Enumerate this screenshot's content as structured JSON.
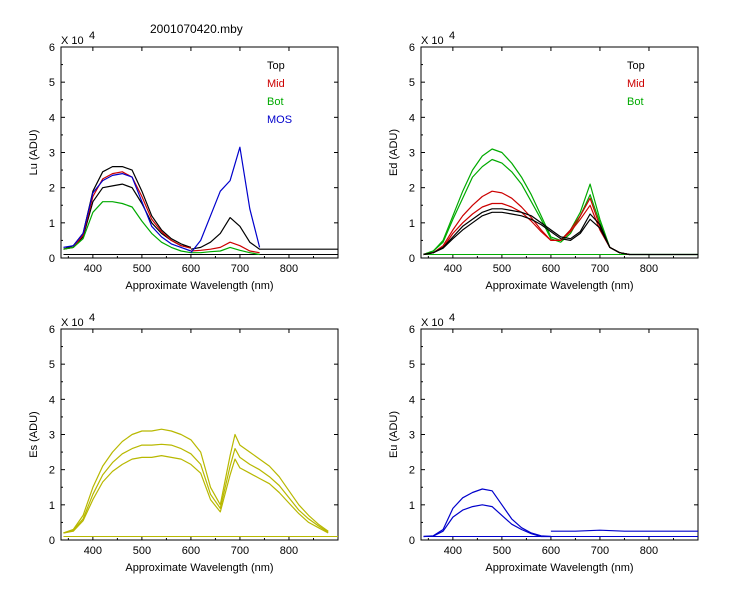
{
  "figure_title": "2001070420.mby",
  "chart_data": [
    {
      "type": "line",
      "ylabel": "Lu (ADU)",
      "xlabel": "Approximate Wavelength (nm)",
      "exponent_label": "X 10^4",
      "xlim": [
        335,
        900
      ],
      "ylim": [
        0,
        6
      ],
      "xticks": [
        400,
        500,
        600,
        700,
        800
      ],
      "yticks": [
        0,
        1,
        2,
        3,
        4,
        5,
        6
      ],
      "legend": [
        {
          "name": "Top",
          "color": "#000000"
        },
        {
          "name": "Mid",
          "color": "#cc0000"
        },
        {
          "name": "Bot",
          "color": "#00aa00"
        },
        {
          "name": "MOS",
          "color": "#0000cc"
        }
      ],
      "series": [
        {
          "name": "Top",
          "color": "#000000",
          "x": [
            340,
            360,
            380,
            400,
            420,
            440,
            460,
            480,
            500,
            520,
            540,
            560,
            580,
            600
          ],
          "y": [
            0.25,
            0.35,
            0.7,
            1.9,
            2.45,
            2.6,
            2.6,
            2.5,
            1.9,
            1.2,
            0.8,
            0.55,
            0.4,
            0.3
          ]
        },
        {
          "name": "Top",
          "color": "#000000",
          "x": [
            340,
            360,
            380,
            400,
            420,
            440,
            460,
            480,
            500,
            520,
            540,
            560,
            580,
            600
          ],
          "y": [
            0.25,
            0.3,
            0.6,
            1.6,
            2.0,
            2.05,
            2.1,
            2.0,
            1.55,
            1.0,
            0.7,
            0.5,
            0.35,
            0.3
          ]
        },
        {
          "name": "Top",
          "color": "#000000",
          "x": [
            600,
            620,
            640,
            660,
            680,
            700,
            720,
            740,
            900
          ],
          "y": [
            0.25,
            0.3,
            0.45,
            0.7,
            1.15,
            0.9,
            0.45,
            0.25,
            0.25
          ]
        },
        {
          "name": "Mid",
          "color": "#cc0000",
          "x": [
            340,
            360,
            380,
            400,
            420,
            440,
            460,
            480,
            500,
            520,
            540,
            560,
            580,
            600
          ],
          "y": [
            0.25,
            0.3,
            0.65,
            1.75,
            2.25,
            2.4,
            2.45,
            2.3,
            1.75,
            1.1,
            0.75,
            0.5,
            0.35,
            0.28
          ]
        },
        {
          "name": "Mid",
          "color": "#cc0000",
          "x": [
            600,
            620,
            640,
            660,
            680,
            700,
            720,
            740
          ],
          "y": [
            0.2,
            0.22,
            0.25,
            0.3,
            0.45,
            0.35,
            0.2,
            0.15
          ]
        },
        {
          "name": "Bot",
          "color": "#00aa00",
          "x": [
            340,
            360,
            380,
            400,
            420,
            440,
            460,
            480,
            500,
            520,
            540,
            560,
            580,
            600
          ],
          "y": [
            0.25,
            0.3,
            0.55,
            1.3,
            1.6,
            1.6,
            1.55,
            1.45,
            1.05,
            0.7,
            0.45,
            0.3,
            0.2,
            0.15
          ]
        },
        {
          "name": "Bot",
          "color": "#00aa00",
          "x": [
            600,
            620,
            640,
            660,
            680,
            700,
            720,
            740
          ],
          "y": [
            0.15,
            0.15,
            0.18,
            0.2,
            0.3,
            0.22,
            0.15,
            0.1
          ]
        },
        {
          "name": "MOS",
          "color": "#0000cc",
          "x": [
            340,
            360,
            380,
            400,
            420,
            440,
            460,
            480,
            500,
            520,
            540,
            560,
            580,
            600
          ],
          "y": [
            0.3,
            0.35,
            0.7,
            1.85,
            2.2,
            2.35,
            2.4,
            2.3,
            1.6,
            0.9,
            0.6,
            0.4,
            0.3,
            0.2
          ]
        },
        {
          "name": "MOS",
          "color": "#0000cc",
          "x": [
            600,
            620,
            640,
            660,
            680,
            700,
            720,
            740
          ],
          "y": [
            0.15,
            0.5,
            1.2,
            1.9,
            2.2,
            3.15,
            1.4,
            0.3
          ]
        }
      ]
    },
    {
      "type": "line",
      "ylabel": "Ed (ADU)",
      "xlabel": "Approximate Wavelength (nm)",
      "exponent_label": "X 10^4",
      "xlim": [
        335,
        900
      ],
      "ylim": [
        0,
        6
      ],
      "xticks": [
        400,
        500,
        600,
        700,
        800
      ],
      "yticks": [
        0,
        1,
        2,
        3,
        4,
        5,
        6
      ],
      "legend": [
        {
          "name": "Top",
          "color": "#000000"
        },
        {
          "name": "Mid",
          "color": "#cc0000"
        },
        {
          "name": "Bot",
          "color": "#00aa00"
        }
      ],
      "series": [
        {
          "name": "Bot",
          "color": "#00aa00",
          "x": [
            340,
            360,
            380,
            400,
            420,
            440,
            460,
            480,
            500,
            520,
            540,
            560,
            580,
            600,
            620,
            640,
            660,
            680,
            700,
            720,
            740,
            760,
            800,
            900
          ],
          "y": [
            0.1,
            0.2,
            0.5,
            1.2,
            1.9,
            2.5,
            2.9,
            3.1,
            3.0,
            2.7,
            2.3,
            1.8,
            1.2,
            0.6,
            0.5,
            0.8,
            1.3,
            2.1,
            1.1,
            0.3,
            0.15,
            0.1,
            0.1,
            0.1
          ]
        },
        {
          "name": "Bot",
          "color": "#00aa00",
          "x": [
            340,
            360,
            380,
            400,
            420,
            440,
            460,
            480,
            500,
            520,
            540,
            560,
            580,
            600,
            620,
            640,
            660,
            680,
            700,
            720,
            740,
            760
          ],
          "y": [
            0.1,
            0.2,
            0.45,
            1.1,
            1.7,
            2.3,
            2.6,
            2.8,
            2.7,
            2.45,
            2.1,
            1.6,
            1.1,
            0.55,
            0.45,
            0.7,
            1.2,
            1.8,
            1.0,
            0.3,
            0.15,
            0.1
          ]
        },
        {
          "name": "Mid",
          "color": "#cc0000",
          "x": [
            340,
            360,
            380,
            400,
            420,
            440,
            460,
            480,
            500,
            520,
            540,
            560,
            580,
            600,
            620,
            640,
            660,
            680,
            700,
            720,
            740,
            760
          ],
          "y": [
            0.1,
            0.15,
            0.35,
            0.8,
            1.2,
            1.5,
            1.75,
            1.9,
            1.85,
            1.7,
            1.45,
            1.15,
            0.8,
            0.5,
            0.5,
            0.8,
            1.2,
            1.7,
            0.9,
            0.3,
            0.15,
            0.1
          ]
        },
        {
          "name": "Mid",
          "color": "#cc0000",
          "x": [
            340,
            360,
            380,
            400,
            420,
            440,
            460,
            480,
            500,
            520,
            540,
            560,
            580,
            600,
            620,
            640,
            660,
            680,
            700,
            720,
            740,
            760
          ],
          "y": [
            0.1,
            0.15,
            0.3,
            0.7,
            1.0,
            1.25,
            1.45,
            1.55,
            1.55,
            1.45,
            1.3,
            1.05,
            0.75,
            0.5,
            0.5,
            0.75,
            1.1,
            1.5,
            0.8,
            0.3,
            0.15,
            0.1
          ]
        },
        {
          "name": "Top",
          "color": "#000000",
          "x": [
            340,
            360,
            380,
            400,
            420,
            440,
            460,
            480,
            500,
            520,
            540,
            560,
            580,
            600,
            620,
            640,
            660,
            680,
            700,
            720,
            740,
            760,
            800,
            900
          ],
          "y": [
            0.1,
            0.15,
            0.3,
            0.6,
            0.9,
            1.1,
            1.3,
            1.4,
            1.4,
            1.35,
            1.3,
            1.2,
            1.0,
            0.8,
            0.6,
            0.55,
            0.75,
            1.25,
            0.95,
            0.3,
            0.15,
            0.1,
            0.1,
            0.1
          ]
        },
        {
          "name": "Top",
          "color": "#000000",
          "x": [
            340,
            360,
            380,
            400,
            420,
            440,
            460,
            480,
            500,
            520,
            540,
            560,
            580,
            600,
            620,
            640,
            660,
            680,
            700,
            720,
            740,
            760
          ],
          "y": [
            0.1,
            0.15,
            0.28,
            0.55,
            0.8,
            1.0,
            1.2,
            1.3,
            1.3,
            1.25,
            1.2,
            1.1,
            0.95,
            0.75,
            0.55,
            0.5,
            0.7,
            1.1,
            0.85,
            0.3,
            0.15,
            0.1
          ]
        }
      ]
    },
    {
      "type": "line",
      "ylabel": "Es (ADU)",
      "xlabel": "Approximate Wavelength (nm)",
      "exponent_label": "X 10^4",
      "xlim": [
        335,
        900
      ],
      "ylim": [
        0,
        6
      ],
      "xticks": [
        400,
        500,
        600,
        700,
        800
      ],
      "yticks": [
        0,
        1,
        2,
        3,
        4,
        5,
        6
      ],
      "series": [
        {
          "name": "Es",
          "color": "#b8b800",
          "x": [
            340,
            360,
            380,
            400,
            420,
            440,
            460,
            480,
            500,
            520,
            540,
            560,
            580,
            600,
            620,
            640,
            660,
            680,
            690,
            700,
            720,
            740,
            760,
            780,
            800,
            820,
            840,
            860,
            880
          ],
          "y": [
            0.2,
            0.3,
            0.7,
            1.5,
            2.1,
            2.5,
            2.8,
            3.0,
            3.1,
            3.1,
            3.15,
            3.1,
            3.0,
            2.85,
            2.5,
            1.5,
            1.0,
            2.4,
            3.0,
            2.7,
            2.5,
            2.3,
            2.1,
            1.8,
            1.4,
            1.0,
            0.7,
            0.45,
            0.25
          ]
        },
        {
          "name": "Es",
          "color": "#b8b800",
          "x": [
            340,
            360,
            380,
            400,
            420,
            440,
            460,
            480,
            500,
            520,
            540,
            560,
            580,
            600,
            620,
            640,
            660,
            680,
            690,
            700,
            720,
            740,
            760,
            780,
            800,
            820,
            840,
            860,
            880
          ],
          "y": [
            0.2,
            0.28,
            0.6,
            1.3,
            1.85,
            2.2,
            2.45,
            2.6,
            2.7,
            2.7,
            2.72,
            2.7,
            2.6,
            2.45,
            2.15,
            1.3,
            0.9,
            2.1,
            2.6,
            2.35,
            2.15,
            2.0,
            1.8,
            1.55,
            1.2,
            0.85,
            0.6,
            0.4,
            0.22
          ]
        },
        {
          "name": "Es",
          "color": "#b8b800",
          "x": [
            340,
            360,
            380,
            400,
            420,
            440,
            460,
            480,
            500,
            520,
            540,
            560,
            580,
            600,
            620,
            640,
            660,
            680,
            690,
            700,
            720,
            740,
            760,
            780,
            800,
            820,
            840,
            860,
            880
          ],
          "y": [
            0.2,
            0.25,
            0.55,
            1.15,
            1.65,
            1.95,
            2.15,
            2.3,
            2.35,
            2.35,
            2.4,
            2.35,
            2.3,
            2.15,
            1.9,
            1.15,
            0.8,
            1.85,
            2.3,
            2.05,
            1.9,
            1.75,
            1.6,
            1.35,
            1.05,
            0.75,
            0.5,
            0.35,
            0.2
          ]
        }
      ]
    },
    {
      "type": "line",
      "ylabel": "Eu (ADU)",
      "xlabel": "Approximate Wavelength (nm)",
      "exponent_label": "X 10^4",
      "xlim": [
        335,
        900
      ],
      "ylim": [
        0,
        6
      ],
      "xticks": [
        400,
        500,
        600,
        700,
        800
      ],
      "yticks": [
        0,
        1,
        2,
        3,
        4,
        5,
        6
      ],
      "series": [
        {
          "name": "Eu",
          "color": "#0000cc",
          "x": [
            340,
            360,
            380,
            400,
            420,
            440,
            460,
            480,
            500,
            520,
            540,
            560,
            580,
            600
          ],
          "y": [
            0.1,
            0.12,
            0.3,
            0.9,
            1.2,
            1.35,
            1.45,
            1.4,
            1.0,
            0.6,
            0.35,
            0.2,
            0.12,
            0.1
          ]
        },
        {
          "name": "Eu",
          "color": "#0000cc",
          "x": [
            340,
            360,
            380,
            400,
            420,
            440,
            460,
            480,
            500,
            520,
            540,
            560,
            580,
            600
          ],
          "y": [
            0.1,
            0.11,
            0.25,
            0.65,
            0.85,
            0.95,
            1.0,
            0.95,
            0.7,
            0.45,
            0.3,
            0.18,
            0.1,
            0.1
          ]
        },
        {
          "name": "Eu",
          "color": "#0000cc",
          "x": [
            600,
            650,
            700,
            750,
            800,
            850,
            900
          ],
          "y": [
            0.25,
            0.25,
            0.28,
            0.25,
            0.25,
            0.25,
            0.25
          ]
        }
      ]
    }
  ]
}
